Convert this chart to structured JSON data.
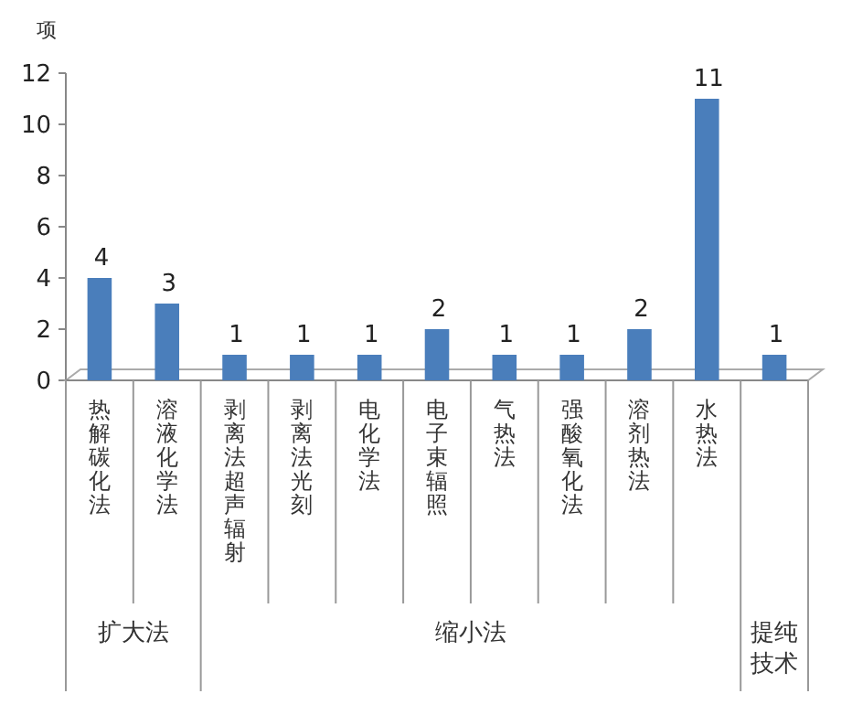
{
  "chart_data": {
    "type": "bar",
    "ylabel": "项",
    "categories": [
      "热解碳化法",
      "溶液化学法",
      "剥离法超声辐射",
      "剥离法光刻",
      "电化学法",
      "电子束辐照",
      "气热法",
      "强酸氧化法",
      "溶剂热法",
      "水热法",
      null
    ],
    "values": [
      4,
      3,
      1,
      1,
      1,
      2,
      1,
      1,
      2,
      11,
      1
    ],
    "color": "#4a7ebb",
    "ylim": [
      0,
      12
    ],
    "yticks": [
      0,
      2,
      4,
      6,
      8,
      10,
      12
    ],
    "data_labels": true,
    "annotations": [
      "扩大法",
      "缩小法",
      "提纯技术"
    ]
  }
}
